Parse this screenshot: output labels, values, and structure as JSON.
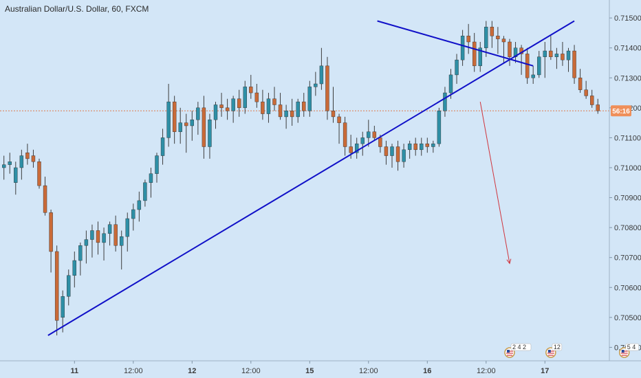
{
  "chart_data": {
    "type": "candlestick",
    "title": "Australian Dollar/U.S. Dollar, 60, FXCM",
    "colors": {
      "background": "#d3e6f7",
      "up": "#2e8fa6",
      "down": "#c96a38",
      "wick": "#3c3c3c",
      "trendline": "#1010c8",
      "projection_arrow": "#d0343c",
      "last_price_line": "#e07a4c",
      "price_badge": "#ef8f5a"
    },
    "y_axis": {
      "range": [
        0.70355,
        0.7156
      ],
      "ticks": [
        "0.71500",
        "0.71400",
        "0.71300",
        "0.71200",
        "0.71100",
        "0.71000",
        "0.70900",
        "0.70800",
        "0.70700",
        "0.70600",
        "0.70500",
        "0.70400"
      ],
      "tick_values": [
        0.715,
        0.714,
        0.713,
        0.712,
        0.711,
        0.71,
        0.709,
        0.708,
        0.707,
        0.706,
        0.705,
        0.704
      ]
    },
    "x_axis": {
      "labels": [
        "12:00",
        "11",
        "12:00",
        "12",
        "12:00",
        "15",
        "12:00",
        "16",
        "12:00",
        "17"
      ],
      "label_bars": [
        -3,
        12,
        22,
        32,
        42,
        52,
        62,
        72,
        82,
        92
      ],
      "bold": [
        false,
        true,
        false,
        true,
        false,
        true,
        false,
        true,
        false,
        true
      ]
    },
    "last_price": 0.7119,
    "countdown_label": "56:16",
    "candles": [
      [
        0.71,
        0.7104,
        0.7096,
        0.7101
      ],
      [
        0.7101,
        0.7105,
        0.7098,
        0.7102
      ],
      [
        0.7095,
        0.7102,
        0.7091,
        0.71
      ],
      [
        0.71,
        0.7106,
        0.7096,
        0.7104
      ],
      [
        0.7105,
        0.7108,
        0.7101,
        0.7103
      ],
      [
        0.7104,
        0.7106,
        0.71,
        0.7102
      ],
      [
        0.7102,
        0.7103,
        0.7093,
        0.7094
      ],
      [
        0.7094,
        0.7097,
        0.7084,
        0.7085
      ],
      [
        0.7085,
        0.7086,
        0.7065,
        0.7072
      ],
      [
        0.7072,
        0.7074,
        0.7044,
        0.7049
      ],
      [
        0.705,
        0.7059,
        0.7045,
        0.7057
      ],
      [
        0.7057,
        0.7066,
        0.7054,
        0.7064
      ],
      [
        0.7064,
        0.7072,
        0.706,
        0.7069
      ],
      [
        0.7069,
        0.7075,
        0.7064,
        0.7074
      ],
      [
        0.7074,
        0.7079,
        0.7068,
        0.7076
      ],
      [
        0.7076,
        0.7081,
        0.707,
        0.7079
      ],
      [
        0.7079,
        0.7082,
        0.7071,
        0.7075
      ],
      [
        0.7075,
        0.708,
        0.7069,
        0.7078
      ],
      [
        0.7078,
        0.7082,
        0.7074,
        0.7081
      ],
      [
        0.7081,
        0.7084,
        0.7072,
        0.7074
      ],
      [
        0.7074,
        0.7079,
        0.7066,
        0.7077
      ],
      [
        0.7077,
        0.7085,
        0.7072,
        0.7083
      ],
      [
        0.7083,
        0.7088,
        0.7079,
        0.7086
      ],
      [
        0.7086,
        0.7092,
        0.7082,
        0.7089
      ],
      [
        0.7089,
        0.7096,
        0.7087,
        0.7095
      ],
      [
        0.7095,
        0.71,
        0.709,
        0.7098
      ],
      [
        0.7098,
        0.7105,
        0.7095,
        0.7104
      ],
      [
        0.7104,
        0.7113,
        0.7101,
        0.711
      ],
      [
        0.711,
        0.7128,
        0.7107,
        0.7122
      ],
      [
        0.7122,
        0.7124,
        0.7108,
        0.7112
      ],
      [
        0.7112,
        0.712,
        0.7108,
        0.7115
      ],
      [
        0.7115,
        0.7118,
        0.7105,
        0.7114
      ],
      [
        0.7114,
        0.7119,
        0.7109,
        0.7116
      ],
      [
        0.7116,
        0.7122,
        0.7111,
        0.712
      ],
      [
        0.712,
        0.7124,
        0.7103,
        0.7107
      ],
      [
        0.7107,
        0.7118,
        0.7103,
        0.7116
      ],
      [
        0.7116,
        0.7122,
        0.7113,
        0.7121
      ],
      [
        0.7121,
        0.7125,
        0.7117,
        0.712
      ],
      [
        0.712,
        0.7123,
        0.7116,
        0.7119
      ],
      [
        0.7119,
        0.7124,
        0.7115,
        0.7123
      ],
      [
        0.7123,
        0.7126,
        0.7117,
        0.712
      ],
      [
        0.712,
        0.7129,
        0.7118,
        0.7127
      ],
      [
        0.7127,
        0.7131,
        0.7123,
        0.7125
      ],
      [
        0.7125,
        0.7128,
        0.712,
        0.7122
      ],
      [
        0.7122,
        0.7126,
        0.7116,
        0.7118
      ],
      [
        0.7118,
        0.7125,
        0.7115,
        0.7123
      ],
      [
        0.7123,
        0.7127,
        0.7119,
        0.7121
      ],
      [
        0.7121,
        0.7125,
        0.7116,
        0.7117
      ],
      [
        0.7117,
        0.7121,
        0.7113,
        0.7119
      ],
      [
        0.7119,
        0.7123,
        0.7114,
        0.7117
      ],
      [
        0.7117,
        0.7123,
        0.7115,
        0.7122
      ],
      [
        0.7122,
        0.7125,
        0.7117,
        0.7119
      ],
      [
        0.7119,
        0.7129,
        0.7117,
        0.7127
      ],
      [
        0.7127,
        0.7132,
        0.7124,
        0.7128
      ],
      [
        0.7128,
        0.714,
        0.7126,
        0.7134
      ],
      [
        0.7134,
        0.7137,
        0.7116,
        0.7119
      ],
      [
        0.7119,
        0.7127,
        0.7115,
        0.7117
      ],
      [
        0.7117,
        0.7118,
        0.7108,
        0.7115
      ],
      [
        0.7115,
        0.7117,
        0.7104,
        0.7107
      ],
      [
        0.7107,
        0.7111,
        0.7103,
        0.7105
      ],
      [
        0.7105,
        0.711,
        0.7103,
        0.7108
      ],
      [
        0.7108,
        0.7112,
        0.7104,
        0.711
      ],
      [
        0.711,
        0.7116,
        0.7107,
        0.7112
      ],
      [
        0.7112,
        0.7114,
        0.7109,
        0.711
      ],
      [
        0.711,
        0.7111,
        0.7105,
        0.7107
      ],
      [
        0.7107,
        0.7109,
        0.7101,
        0.7104
      ],
      [
        0.7104,
        0.7108,
        0.71,
        0.7107
      ],
      [
        0.7107,
        0.7109,
        0.7099,
        0.7102
      ],
      [
        0.7102,
        0.7108,
        0.71,
        0.7106
      ],
      [
        0.7106,
        0.7109,
        0.7103,
        0.7108
      ],
      [
        0.7108,
        0.711,
        0.7104,
        0.7106
      ],
      [
        0.7106,
        0.711,
        0.7104,
        0.7108
      ],
      [
        0.7108,
        0.711,
        0.7105,
        0.7107
      ],
      [
        0.7107,
        0.7109,
        0.7105,
        0.7108
      ],
      [
        0.7108,
        0.712,
        0.7107,
        0.7119
      ],
      [
        0.7119,
        0.7127,
        0.7117,
        0.7125
      ],
      [
        0.7125,
        0.7133,
        0.7123,
        0.7131
      ],
      [
        0.7131,
        0.7138,
        0.7128,
        0.7136
      ],
      [
        0.7136,
        0.7146,
        0.7134,
        0.7144
      ],
      [
        0.7144,
        0.7148,
        0.7138,
        0.7142
      ],
      [
        0.7142,
        0.7145,
        0.7132,
        0.7134
      ],
      [
        0.7134,
        0.7142,
        0.7132,
        0.714
      ],
      [
        0.714,
        0.7149,
        0.7137,
        0.7147
      ],
      [
        0.7147,
        0.7149,
        0.714,
        0.7144
      ],
      [
        0.7144,
        0.7147,
        0.7138,
        0.7143
      ],
      [
        0.7143,
        0.7144,
        0.7135,
        0.7142
      ],
      [
        0.7142,
        0.7143,
        0.7134,
        0.7137
      ],
      [
        0.7137,
        0.7142,
        0.7135,
        0.714
      ],
      [
        0.714,
        0.7141,
        0.7131,
        0.7138
      ],
      [
        0.7138,
        0.714,
        0.7128,
        0.713
      ],
      [
        0.713,
        0.7134,
        0.7128,
        0.7131
      ],
      [
        0.7131,
        0.7139,
        0.713,
        0.7137
      ],
      [
        0.7137,
        0.7142,
        0.713,
        0.7139
      ],
      [
        0.7139,
        0.7144,
        0.7136,
        0.7137
      ],
      [
        0.7137,
        0.714,
        0.7133,
        0.7138
      ],
      [
        0.7138,
        0.7142,
        0.7134,
        0.7136
      ],
      [
        0.7136,
        0.714,
        0.7132,
        0.7139
      ],
      [
        0.7139,
        0.7141,
        0.7128,
        0.713
      ],
      [
        0.713,
        0.7133,
        0.7125,
        0.7126
      ],
      [
        0.7126,
        0.7129,
        0.7123,
        0.7124
      ],
      [
        0.7124,
        0.7126,
        0.712,
        0.7121
      ],
      [
        0.7121,
        0.7123,
        0.7118,
        0.7119
      ]
    ],
    "annotations": {
      "ascending_trendline": {
        "bar_start": 7.5,
        "price_start": 0.7044,
        "bar_end": 97,
        "price_end": 0.7149
      },
      "descending_trendline": {
        "bar_start": 63.5,
        "price_start": 0.7149,
        "bar_end": 90,
        "price_end": 0.7134
      },
      "projection_arrow": {
        "bar_start": 81,
        "price_start": 0.7122,
        "bar_end": 86,
        "price_end": 0.7068
      }
    },
    "events": [
      {
        "bar": 86,
        "count": "2 4 2"
      },
      {
        "bar": 93,
        "count": "12"
      },
      {
        "bar": 105.5,
        "count": "5 4"
      }
    ]
  }
}
